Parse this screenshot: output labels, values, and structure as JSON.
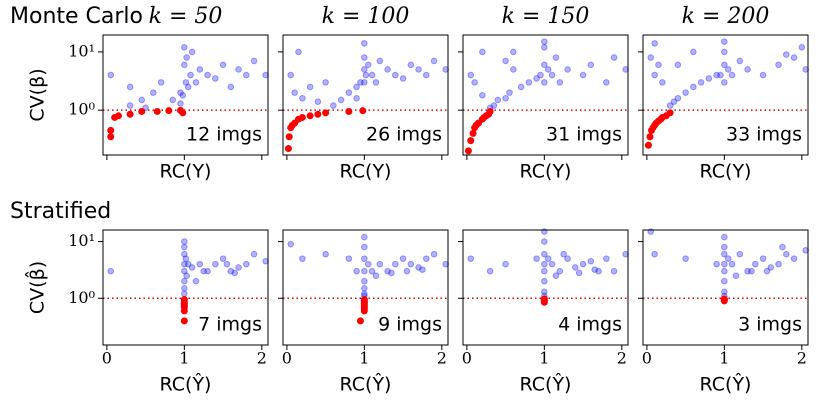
{
  "chart_data": [
    {
      "type": "scatter",
      "row_title": "Monte Carlo",
      "title": "k = 50",
      "xlabel": "RC(Y)",
      "ylabel": "CV(β)",
      "annotation": "12 imgs",
      "log_y": true,
      "hline": 1,
      "hline_color": "#e00000",
      "annotation_color": "#8b0000",
      "xlim": [
        -0.05,
        2.08
      ],
      "ylim": [
        0.17,
        19.5
      ],
      "xticks": [
        0,
        1,
        2
      ],
      "yticks": [
        {
          "value": 1,
          "label": "10⁰"
        },
        {
          "value": 10,
          "label": "10¹"
        }
      ],
      "xticklabels": false,
      "yticklabels": true,
      "series": [
        {
          "color": "#0000ff",
          "x": [
            0.05,
            0.3,
            0.45,
            0.6,
            0.7,
            0.85,
            0.95,
            1.0,
            1.0,
            1.02,
            1.05,
            0.98,
            1.08,
            1.1,
            1.15,
            1.2,
            1.3,
            1.4,
            1.5,
            1.6,
            1.7,
            1.8,
            1.9,
            2.05,
            0.3,
            0.5,
            0.95,
            1.03
          ],
          "values": [
            4,
            2.5,
            1.5,
            2,
            3,
            1.5,
            2,
            12,
            6,
            3,
            2.5,
            1.8,
            4,
            10,
            3,
            5,
            4,
            3.5,
            6,
            2.5,
            5,
            4,
            7,
            4,
            1.2,
            1.1,
            1.3,
            8
          ]
        },
        {
          "color": "#ff0000",
          "x": [
            0.05,
            0.05,
            0.1,
            0.15,
            0.3,
            0.45,
            0.65,
            0.8,
            0.95,
            0.98
          ],
          "values": [
            0.35,
            0.45,
            0.75,
            0.8,
            0.85,
            0.95,
            0.95,
            0.98,
            0.99,
            0.9
          ]
        }
      ]
    },
    {
      "type": "scatter",
      "title": "k = 100",
      "xlabel": "RC(Y)",
      "annotation": "26 imgs",
      "log_y": true,
      "hline": 1,
      "hline_color": "#e00000",
      "annotation_color": "#8b0000",
      "xlim": [
        -0.05,
        2.08
      ],
      "ylim": [
        0.17,
        19.5
      ],
      "xticks": [
        0,
        1,
        2
      ],
      "yticks": [
        {
          "value": 1,
          "label": "10⁰"
        },
        {
          "value": 10,
          "label": "10¹"
        }
      ],
      "xticklabels": false,
      "yticklabels": false,
      "series": [
        {
          "color": "#0000ff",
          "x": [
            0.05,
            0.1,
            0.2,
            0.3,
            0.4,
            0.5,
            0.6,
            0.7,
            0.8,
            0.9,
            0.95,
            1.0,
            1.0,
            1.0,
            1.02,
            1.05,
            1.1,
            1.15,
            1.2,
            1.3,
            1.4,
            1.5,
            1.6,
            1.7,
            1.8,
            1.9,
            2.05,
            0.15,
            0.9,
            1.0
          ],
          "values": [
            4,
            2,
            1.6,
            2.5,
            1.4,
            3,
            1.2,
            1.5,
            2,
            2.5,
            3,
            8,
            5,
            3,
            4,
            6,
            4,
            3,
            7,
            5,
            4,
            3.5,
            6,
            5,
            4,
            7,
            5,
            10,
            1.6,
            14
          ]
        },
        {
          "color": "#ff0000",
          "x": [
            0.02,
            0.03,
            0.05,
            0.07,
            0.1,
            0.15,
            0.2,
            0.3,
            0.4,
            0.5,
            0.8,
            0.98
          ],
          "values": [
            0.22,
            0.35,
            0.5,
            0.55,
            0.6,
            0.7,
            0.75,
            0.8,
            0.85,
            0.9,
            0.95,
            0.98
          ]
        }
      ]
    },
    {
      "type": "scatter",
      "title": "k = 150",
      "xlabel": "RC(Y)",
      "annotation": "31 imgs",
      "log_y": true,
      "hline": 1,
      "hline_color": "#e00000",
      "annotation_color": "#8b0000",
      "xlim": [
        -0.05,
        2.08
      ],
      "ylim": [
        0.17,
        19.5
      ],
      "xticks": [
        0,
        1,
        2
      ],
      "yticks": [
        {
          "value": 1,
          "label": "10⁰"
        },
        {
          "value": 10,
          "label": "10¹"
        }
      ],
      "xticklabels": false,
      "yticklabels": false,
      "series": [
        {
          "color": "#0000ff",
          "x": [
            0.05,
            0.1,
            0.2,
            0.3,
            0.35,
            0.4,
            0.5,
            0.55,
            0.6,
            0.7,
            0.8,
            0.9,
            0.95,
            1.0,
            1.0,
            1.0,
            1.05,
            1.1,
            1.15,
            1.2,
            1.3,
            1.5,
            1.6,
            1.8,
            1.9,
            2.05,
            0.2,
            0.6,
            1.0,
            0.5
          ],
          "values": [
            4,
            3,
            10,
            1.1,
            1.2,
            1.5,
            1.6,
            2,
            5,
            2.5,
            3,
            3.5,
            4,
            6,
            12,
            3,
            5,
            4,
            8,
            3,
            5,
            4,
            6,
            3,
            8,
            5,
            1.8,
            10,
            15,
            7
          ]
        },
        {
          "color": "#ff0000",
          "x": [
            0.02,
            0.05,
            0.08,
            0.1,
            0.12,
            0.15,
            0.2,
            0.22,
            0.25,
            0.28,
            0.3
          ],
          "values": [
            0.2,
            0.3,
            0.4,
            0.5,
            0.55,
            0.6,
            0.7,
            0.75,
            0.8,
            0.85,
            0.95
          ]
        }
      ]
    },
    {
      "type": "scatter",
      "title": "k = 200",
      "xlabel": "RC(Y)",
      "annotation": "33 imgs",
      "log_y": true,
      "hline": 1,
      "hline_color": "#e00000",
      "annotation_color": "#8b0000",
      "xlim": [
        -0.05,
        2.08
      ],
      "ylim": [
        0.17,
        19.5
      ],
      "xticks": [
        0,
        1,
        2
      ],
      "yticks": [
        {
          "value": 1,
          "label": "10⁰"
        },
        {
          "value": 10,
          "label": "10¹"
        }
      ],
      "xticklabels": false,
      "yticklabels": false,
      "series": [
        {
          "color": "#0000ff",
          "x": [
            0.05,
            0.1,
            0.15,
            0.2,
            0.3,
            0.35,
            0.4,
            0.5,
            0.6,
            0.7,
            0.8,
            0.9,
            0.95,
            1.0,
            1.0,
            1.0,
            1.05,
            1.1,
            1.2,
            1.3,
            1.5,
            1.7,
            1.8,
            1.9,
            2.05,
            0.1,
            0.4,
            0.6,
            1.0,
            2.0
          ],
          "values": [
            8,
            4,
            6,
            3,
            1.2,
            1.4,
            1.6,
            2,
            2.5,
            3,
            3.5,
            4,
            4,
            6,
            15,
            10,
            5,
            4,
            7,
            5,
            4,
            6,
            9,
            8,
            5,
            14,
            6,
            10,
            3,
            12
          ]
        },
        {
          "color": "#ff0000",
          "x": [
            0.02,
            0.04,
            0.06,
            0.08,
            0.1,
            0.12,
            0.15,
            0.18,
            0.2,
            0.25,
            0.3
          ],
          "values": [
            0.25,
            0.35,
            0.45,
            0.5,
            0.55,
            0.6,
            0.65,
            0.7,
            0.75,
            0.8,
            0.9
          ]
        }
      ]
    },
    {
      "type": "scatter",
      "row_title": "Stratified",
      "xlabel": "RC(Ŷ)",
      "ylabel": "CV(β̂)",
      "annotation": "7 imgs",
      "log_y": true,
      "hline": 1,
      "hline_color": "#e00000",
      "annotation_color": "#8b0000",
      "xlim": [
        -0.05,
        2.08
      ],
      "ylim": [
        0.15,
        16
      ],
      "xticks": [
        0,
        1,
        2
      ],
      "yticks": [
        {
          "value": 1,
          "label": "10⁰"
        },
        {
          "value": 10,
          "label": "10¹"
        }
      ],
      "xticklabels": true,
      "yticklabels": true,
      "series": [
        {
          "color": "#0000ff",
          "x": [
            0.05,
            1.0,
            1.0,
            1.0,
            1.0,
            1.0,
            1.0,
            1.0,
            1.02,
            1.05,
            1.1,
            1.2,
            1.3,
            1.4,
            1.5,
            1.6,
            1.7,
            1.8,
            1.9,
            2.05,
            1.0,
            1.03,
            1.15,
            1.25,
            1.55,
            1.65
          ],
          "values": [
            3,
            10,
            6,
            4,
            3,
            2,
            1.5,
            1.2,
            5,
            4,
            3.5,
            4,
            3,
            4,
            5,
            3,
            3.5,
            4,
            6,
            4.5,
            8,
            2.5,
            2,
            3,
            4,
            2.8
          ]
        },
        {
          "color": "#ff0000",
          "x": [
            1.0,
            1.0,
            1.0,
            1.0,
            1.0,
            1.0,
            1.0
          ],
          "values": [
            0.95,
            0.85,
            0.75,
            0.7,
            0.6,
            0.4,
            0.8
          ]
        }
      ]
    },
    {
      "type": "scatter",
      "xlabel": "RC(Ŷ)",
      "annotation": "9 imgs",
      "log_y": true,
      "hline": 1,
      "hline_color": "#e00000",
      "annotation_color": "#8b0000",
      "xlim": [
        -0.05,
        2.08
      ],
      "ylim": [
        0.15,
        16
      ],
      "xticks": [
        0,
        1,
        2
      ],
      "yticks": [
        {
          "value": 1,
          "label": "10⁰"
        },
        {
          "value": 10,
          "label": "10¹"
        }
      ],
      "xticklabels": true,
      "yticklabels": false,
      "series": [
        {
          "color": "#0000ff",
          "x": [
            0.05,
            0.2,
            0.5,
            0.8,
            0.9,
            1.0,
            1.0,
            1.0,
            1.0,
            1.0,
            1.0,
            1.0,
            1.05,
            1.1,
            1.2,
            1.3,
            1.4,
            1.5,
            1.6,
            1.7,
            1.8,
            1.9,
            2.05,
            1.0,
            1.15,
            1.35,
            1.55,
            1.75
          ],
          "values": [
            9,
            5,
            6,
            5,
            3,
            12,
            8,
            5,
            3,
            2,
            1.5,
            1.2,
            4,
            3,
            4,
            3,
            4,
            5,
            4,
            3.5,
            5,
            6,
            4,
            1.1,
            2.5,
            2.8,
            3,
            3.2
          ]
        },
        {
          "color": "#ff0000",
          "x": [
            1.0,
            1.0,
            1.0,
            1.0,
            1.0,
            1.0,
            1.0,
            1.0,
            0.95
          ],
          "values": [
            0.95,
            0.9,
            0.85,
            0.8,
            0.75,
            0.7,
            0.65,
            0.6,
            0.4
          ]
        }
      ]
    },
    {
      "type": "scatter",
      "xlabel": "RC(Ŷ)",
      "annotation": "4 imgs",
      "log_y": true,
      "hline": 1,
      "hline_color": "#e00000",
      "annotation_color": "#8b0000",
      "xlim": [
        -0.05,
        2.08
      ],
      "ylim": [
        0.15,
        16
      ],
      "xticks": [
        0,
        1,
        2
      ],
      "yticks": [
        {
          "value": 1,
          "label": "10⁰"
        },
        {
          "value": 10,
          "label": "10¹"
        }
      ],
      "xticklabels": true,
      "yticklabels": false,
      "series": [
        {
          "color": "#0000ff",
          "x": [
            0.05,
            0.3,
            0.5,
            0.9,
            1.0,
            1.0,
            1.0,
            1.0,
            1.0,
            1.0,
            1.0,
            1.05,
            1.1,
            1.2,
            1.3,
            1.4,
            1.5,
            1.6,
            1.7,
            1.8,
            1.9,
            2.05,
            1.0,
            1.15,
            1.25,
            1.45,
            1.65
          ],
          "values": [
            5,
            3,
            4,
            5,
            15,
            10,
            6,
            4,
            3,
            2,
            1.3,
            5,
            4,
            3,
            5,
            3.5,
            4,
            4.5,
            3,
            5,
            3,
            6,
            1.1,
            2.5,
            6,
            2.8,
            3.2
          ]
        },
        {
          "color": "#ff0000",
          "x": [
            1.0,
            1.0,
            1.0,
            1.0
          ],
          "values": [
            0.95,
            0.9,
            0.85,
            0.97
          ]
        }
      ]
    },
    {
      "type": "scatter",
      "xlabel": "RC(Ŷ)",
      "annotation": "3 imgs",
      "log_y": true,
      "hline": 1,
      "hline_color": "#e00000",
      "annotation_color": "#8b0000",
      "xlim": [
        -0.05,
        2.08
      ],
      "ylim": [
        0.15,
        16
      ],
      "xticks": [
        0,
        1,
        2
      ],
      "yticks": [
        {
          "value": 1,
          "label": "10⁰"
        },
        {
          "value": 10,
          "label": "10¹"
        }
      ],
      "xticklabels": true,
      "yticklabels": false,
      "series": [
        {
          "color": "#0000ff",
          "x": [
            0.05,
            0.1,
            0.5,
            0.9,
            1.0,
            1.0,
            1.0,
            1.0,
            1.0,
            1.0,
            1.0,
            1.05,
            1.1,
            1.2,
            1.3,
            1.4,
            1.5,
            1.6,
            1.7,
            1.8,
            1.9,
            2.05,
            1.0,
            1.15,
            1.35,
            1.55,
            1.75
          ],
          "values": [
            15,
            6,
            5,
            4,
            12,
            8,
            6,
            4,
            3,
            2,
            1.3,
            5,
            4,
            6,
            3,
            4,
            5,
            3.5,
            4,
            6,
            5,
            7,
            1.1,
            2.5,
            3,
            3,
            8
          ]
        },
        {
          "color": "#ff0000",
          "x": [
            1.0,
            1.0,
            1.0
          ],
          "values": [
            0.95,
            0.9,
            0.97
          ]
        }
      ]
    }
  ]
}
